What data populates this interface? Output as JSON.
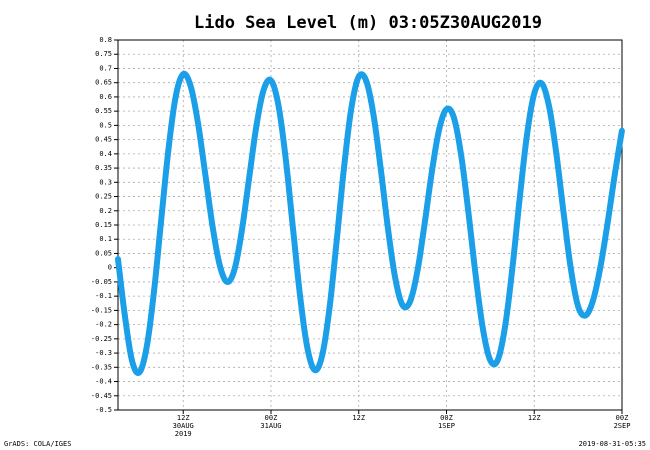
{
  "chart_data": {
    "type": "line",
    "title": "Lido Sea Level (m) 03:05Z30AUG2019",
    "footer_left": "GrADS: COLA/IGES",
    "footer_right": "2019-08-31-05:35",
    "x": [
      3.08,
      4,
      5,
      6,
      7,
      8,
      9,
      10,
      11,
      12,
      13,
      14,
      15,
      16,
      17,
      18,
      19,
      20,
      21,
      22,
      23,
      24,
      25,
      26,
      27,
      28,
      29,
      30,
      31,
      32,
      33,
      34,
      35,
      36,
      37,
      38,
      39,
      40,
      41,
      42,
      43,
      44,
      45,
      46,
      47,
      48,
      49,
      50,
      51,
      52,
      53,
      54,
      55,
      56,
      57,
      58,
      59,
      60,
      61,
      62,
      63,
      64,
      65,
      66,
      67,
      68,
      69,
      70,
      71,
      72
    ],
    "series": [
      {
        "color": "#1a9fe8",
        "values": [
          0.03,
          -0.165,
          -0.327,
          -0.368,
          -0.279,
          -0.084,
          0.171,
          0.42,
          0.605,
          0.68,
          0.639,
          0.511,
          0.331,
          0.147,
          0.008,
          -0.05,
          -0.007,
          0.128,
          0.313,
          0.497,
          0.625,
          0.658,
          0.573,
          0.386,
          0.14,
          -0.104,
          -0.285,
          -0.36,
          -0.308,
          -0.142,
          0.099,
          0.355,
          0.562,
          0.671,
          0.658,
          0.54,
          0.349,
          0.137,
          -0.038,
          -0.132,
          -0.12,
          -0.015,
          0.153,
          0.337,
          0.486,
          0.557,
          0.528,
          0.396,
          0.194,
          -0.029,
          -0.218,
          -0.326,
          -0.325,
          -0.208,
          -0.004,
          0.241,
          0.465,
          0.612,
          0.648,
          0.57,
          0.405,
          0.195,
          -0.003,
          -0.136,
          -0.168,
          -0.118,
          -0.004,
          0.152,
          0.325,
          0.483
        ]
      }
    ],
    "xlim": [
      3.08,
      72
    ],
    "xticks": [
      {
        "value": 12,
        "label": "12Z\n30AUG\n2019"
      },
      {
        "value": 24,
        "label": "00Z\n31AUG"
      },
      {
        "value": 36,
        "label": "12Z"
      },
      {
        "value": 48,
        "label": "00Z\n1SEP"
      },
      {
        "value": 60,
        "label": "12Z"
      },
      {
        "value": 72,
        "label": "00Z\n2SEP"
      }
    ],
    "ylim": [
      -0.5,
      0.8
    ],
    "yticks": [
      0.8,
      0.75,
      0.7,
      0.65,
      0.6,
      0.55,
      0.5,
      0.45,
      0.4,
      0.35,
      0.3,
      0.25,
      0.2,
      0.15,
      0.1,
      0.05,
      0,
      -0.05,
      -0.1,
      -0.15,
      -0.2,
      -0.25,
      -0.3,
      -0.35,
      -0.4,
      -0.45,
      -0.5
    ],
    "grid": true
  }
}
